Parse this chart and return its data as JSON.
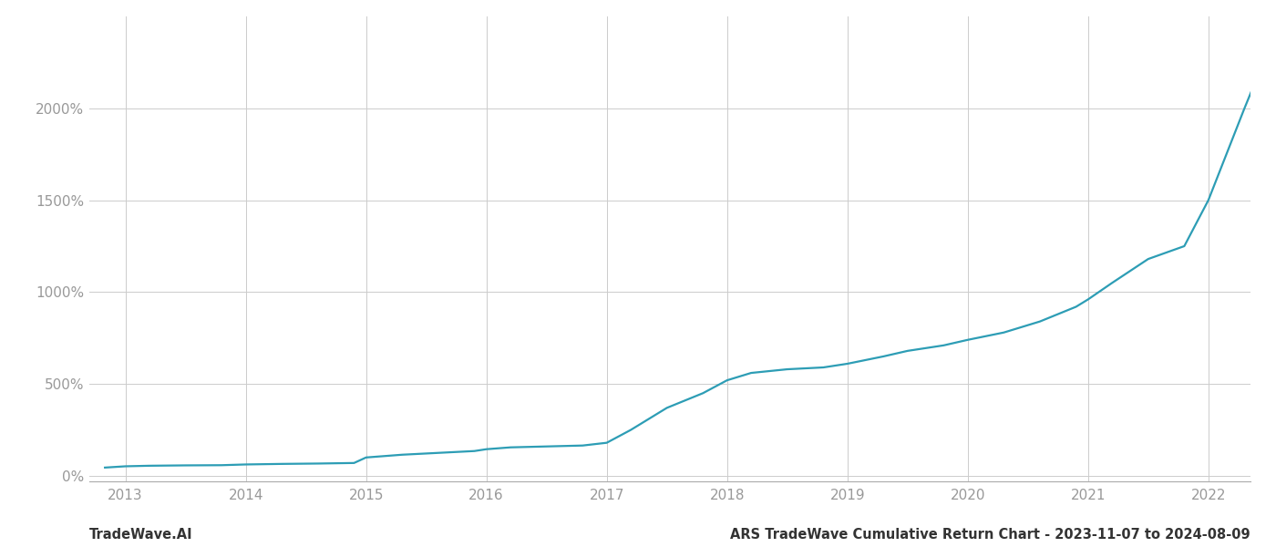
{
  "footer_left": "TradeWave.AI",
  "footer_right": "ARS TradeWave Cumulative Return Chart - 2023-11-07 to 2024-08-09",
  "line_color": "#2d9db5",
  "background_color": "#ffffff",
  "grid_color": "#cccccc",
  "x_years": [
    2013,
    2014,
    2015,
    2016,
    2017,
    2018,
    2019,
    2020,
    2021,
    2022
  ],
  "x_data": [
    2012.83,
    2013.0,
    2013.2,
    2013.5,
    2013.8,
    2014.0,
    2014.3,
    2014.6,
    2014.9,
    2015.0,
    2015.3,
    2015.6,
    2015.9,
    2016.0,
    2016.2,
    2016.5,
    2016.8,
    2017.0,
    2017.2,
    2017.5,
    2017.8,
    2018.0,
    2018.2,
    2018.5,
    2018.8,
    2019.0,
    2019.3,
    2019.5,
    2019.8,
    2020.0,
    2020.3,
    2020.6,
    2020.9,
    2021.0,
    2021.2,
    2021.5,
    2021.8,
    2022.0,
    2022.3,
    2022.5
  ],
  "y_data": [
    45,
    52,
    55,
    57,
    58,
    62,
    65,
    67,
    70,
    100,
    115,
    125,
    135,
    145,
    155,
    160,
    165,
    180,
    250,
    370,
    450,
    520,
    560,
    580,
    590,
    610,
    650,
    680,
    710,
    740,
    780,
    840,
    920,
    960,
    1050,
    1180,
    1250,
    1500,
    2000,
    2320
  ],
  "ylim": [
    -30,
    2500
  ],
  "yticks": [
    0,
    500,
    1000,
    1500,
    2000
  ],
  "xlim": [
    2012.7,
    2022.35
  ],
  "line_width": 1.6,
  "footer_fontsize": 10.5,
  "tick_fontsize": 11,
  "tick_color": "#999999",
  "spine_color": "#aaaaaa"
}
